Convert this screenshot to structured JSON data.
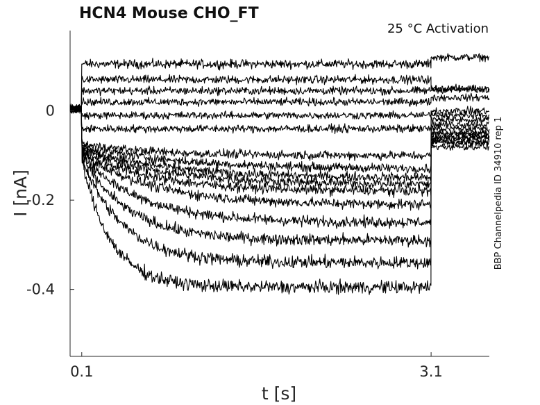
{
  "chart_data": {
    "type": "line",
    "title": "HCN4  Mouse  CHO_FT",
    "subtitle": "25 °C  Activation",
    "side_text": "BBP Channelpedia ID 34910 rep 1",
    "xlabel": "t [s]",
    "ylabel": "I [nA]",
    "xlim": [
      0,
      3.6
    ],
    "ylim": [
      -0.55,
      0.18
    ],
    "x_ticks": [
      0.1,
      3.1
    ],
    "x_tick_labels": [
      "0.1",
      "3.1"
    ],
    "y_ticks": [
      0,
      -0.2,
      -0.4
    ],
    "y_tick_labels": [
      "0",
      "-0.2",
      "-0.4"
    ],
    "grid": false,
    "step_start": 0.1,
    "step_end": 3.1,
    "series": [
      {
        "steady": 0.105,
        "tail": 0.12,
        "tau": 0.05
      },
      {
        "steady": 0.07,
        "tail": 0.05,
        "tau": 0.05
      },
      {
        "steady": 0.045,
        "tail": 0.048,
        "tau": 0.05
      },
      {
        "steady": 0.02,
        "tail": 0.03,
        "tau": 0.05
      },
      {
        "steady": -0.01,
        "tail": 0.0,
        "tau": 0.05
      },
      {
        "steady": -0.04,
        "tail": -0.01,
        "tau": 0.05
      },
      {
        "steady": -0.1,
        "tail": -0.02,
        "tau": 0.6
      },
      {
        "steady": -0.13,
        "tail": -0.03,
        "tau": 0.8
      },
      {
        "steady": -0.15,
        "tail": -0.04,
        "tau": 0.7
      },
      {
        "steady": -0.165,
        "tail": -0.05,
        "tau": 0.7
      },
      {
        "steady": -0.18,
        "tail": -0.05,
        "tau": 0.6
      },
      {
        "steady": -0.21,
        "tail": -0.06,
        "tau": 0.6
      },
      {
        "steady": -0.25,
        "tail": -0.06,
        "tau": 0.5
      },
      {
        "steady": -0.29,
        "tail": -0.07,
        "tau": 0.4
      },
      {
        "steady": -0.34,
        "tail": -0.07,
        "tau": 0.35
      },
      {
        "steady": -0.395,
        "tail": -0.08,
        "tau": 0.25
      }
    ]
  }
}
